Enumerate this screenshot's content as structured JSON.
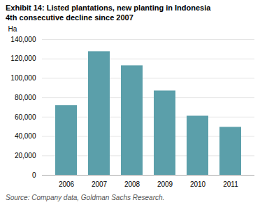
{
  "chart_data": {
    "type": "bar",
    "title": "Exhibit 14: Listed plantations, new planting in Indonesia",
    "subtitle": "4th consecutive decline since 2007",
    "ylabel": "Ha",
    "source": "Source: Company data, Goldman Sachs Research.",
    "categories": [
      "2006",
      "2007",
      "2008",
      "2009",
      "2010",
      "2011"
    ],
    "values": [
      72000,
      127500,
      113000,
      87000,
      61000,
      49500
    ],
    "color": "#5b9faa",
    "ylim": [
      0,
      140000
    ],
    "yticks": [
      0,
      {
        "value": 20000,
        "label": "20,000"
      },
      {
        "value": 40000,
        "label": "40,000"
      },
      {
        "value": 60000,
        "label": "60,000"
      },
      {
        "value": 80000,
        "label": "80,000"
      },
      {
        "value": 100000,
        "label": "100,000"
      },
      {
        "value": 120000,
        "label": "120,000"
      },
      {
        "value": 140000,
        "label": "140,000"
      }
    ],
    "grid": true
  }
}
